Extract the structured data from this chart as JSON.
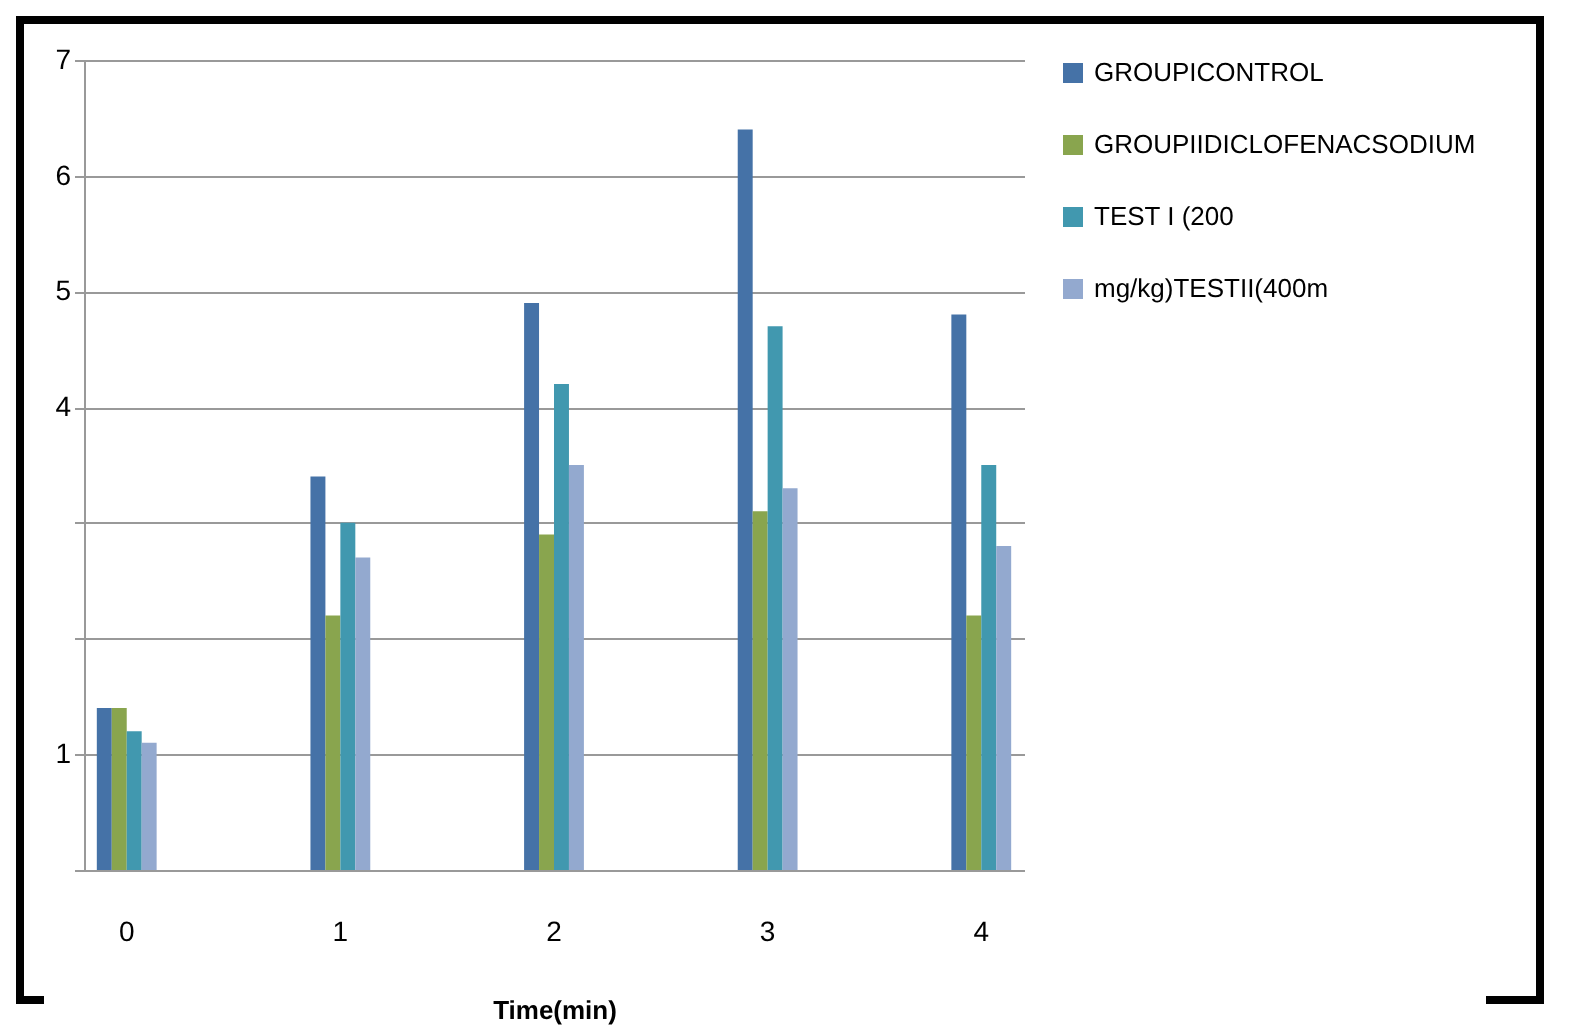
{
  "chart_data": {
    "type": "bar",
    "xlabel": "Time(min)",
    "categories": [
      "0",
      "1",
      "2",
      "3",
      "4"
    ],
    "series": [
      {
        "name": "GROUPICONTROL",
        "color": "#4572a7",
        "values": [
          1.4,
          3.4,
          4.9,
          6.4,
          4.8
        ]
      },
      {
        "name": "GROUPIIDICLOFENACSODIUM",
        "color": "#89a54e",
        "values": [
          1.4,
          2.2,
          2.9,
          3.1,
          2.2
        ]
      },
      {
        "name": "TEST I (200",
        "color": "#4198af",
        "values": [
          1.2,
          3.0,
          4.2,
          4.7,
          3.5
        ]
      },
      {
        "name": "mg/kg)TESTII(400m",
        "color": "#93a9cf",
        "values": [
          1.1,
          2.7,
          3.5,
          3.3,
          2.8
        ]
      }
    ],
    "ylim": [
      0,
      7
    ],
    "yticks": [
      {
        "value": 0,
        "label": null
      },
      1,
      {
        "value": 2,
        "label": null
      },
      {
        "value": 3,
        "label": null
      },
      4,
      5,
      6,
      7
    ],
    "grid": "y",
    "legend": "right"
  }
}
